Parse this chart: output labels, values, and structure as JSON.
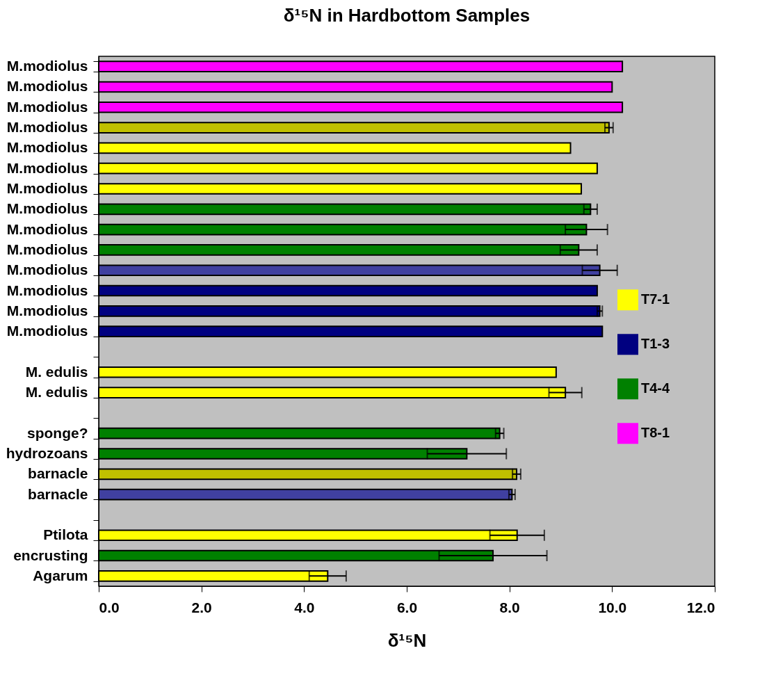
{
  "chart_data": {
    "type": "bar",
    "orientation": "horizontal",
    "title": "δ¹⁵N in Hardbottom Samples",
    "xlabel": "δ¹⁵N",
    "categories": [
      "M.modiolus",
      "M.modiolus",
      "M.modiolus",
      "M.modiolus",
      "M.modiolus",
      "M.modiolus",
      "M.modiolus",
      "M.modiolus",
      "M.modiolus",
      "M.modiolus",
      "M.modiolus",
      "M.modiolus",
      "M.modiolus",
      "M.modiolus",
      null,
      "M. edulis",
      "M. edulis",
      null,
      "sponge?",
      "hydrozoans",
      "barnacle",
      "barnacle",
      null,
      "Ptilota",
      "encrusting",
      "Agarum"
    ],
    "series": [
      {
        "name": "T7-1",
        "color": "#ffff00",
        "values": [
          null,
          null,
          null,
          null,
          9.19,
          9.71,
          9.4,
          null,
          null,
          null,
          null,
          null,
          null,
          null,
          null,
          8.91,
          9.09,
          null,
          null,
          null,
          null,
          null,
          null,
          8.15,
          null,
          4.46
        ],
        "errors": [
          null,
          null,
          null,
          null,
          null,
          null,
          null,
          null,
          null,
          null,
          null,
          null,
          null,
          null,
          null,
          null,
          0.32,
          null,
          null,
          null,
          null,
          null,
          null,
          0.53,
          null,
          0.36
        ]
      },
      {
        "name": "T1-3",
        "color": "#000080",
        "values": [
          null,
          null,
          null,
          null,
          null,
          null,
          null,
          null,
          null,
          null,
          null,
          9.71,
          9.76,
          9.81,
          null,
          null,
          null,
          null,
          null,
          null,
          null,
          null,
          null,
          null,
          null,
          null
        ],
        "errors": [
          null,
          null,
          null,
          null,
          null,
          null,
          null,
          null,
          null,
          null,
          null,
          null,
          0.05,
          null,
          null,
          null,
          null,
          null,
          null,
          null,
          null,
          null,
          null,
          null,
          null,
          null
        ]
      },
      {
        "name": "T4-4",
        "color": "#008000",
        "values": [
          null,
          null,
          null,
          null,
          null,
          null,
          null,
          9.58,
          9.5,
          9.35,
          null,
          null,
          null,
          null,
          null,
          null,
          null,
          null,
          7.81,
          7.17,
          null,
          null,
          null,
          null,
          7.68,
          null
        ],
        "errors": [
          null,
          null,
          null,
          null,
          null,
          null,
          null,
          0.13,
          0.41,
          0.36,
          null,
          null,
          null,
          null,
          null,
          null,
          null,
          null,
          0.08,
          0.77,
          null,
          null,
          null,
          null,
          1.05,
          null
        ]
      },
      {
        "name": "T8-1",
        "color": "#ff00ff",
        "values": [
          10.2,
          10.0,
          10.2,
          null,
          null,
          null,
          null,
          null,
          null,
          null,
          null,
          null,
          null,
          null,
          null,
          null,
          null,
          null,
          null,
          null,
          null,
          null,
          null,
          null,
          null,
          null
        ]
      },
      {
        "color": "#c0c000",
        "values": [
          null,
          null,
          null,
          9.94,
          null,
          null,
          null,
          null,
          null,
          null,
          null,
          null,
          null,
          null,
          null,
          null,
          null,
          null,
          null,
          null,
          8.14,
          null,
          null,
          null,
          null,
          null
        ],
        "errors": [
          null,
          null,
          null,
          0.08,
          null,
          null,
          null,
          null,
          null,
          null,
          null,
          null,
          null,
          null,
          null,
          null,
          null,
          null,
          null,
          null,
          0.08,
          null,
          null,
          null,
          null,
          null
        ]
      },
      {
        "color": "#4040a0",
        "values": [
          null,
          null,
          null,
          null,
          null,
          null,
          null,
          null,
          null,
          null,
          9.76,
          null,
          null,
          null,
          null,
          null,
          null,
          null,
          null,
          null,
          null,
          8.05,
          null,
          null,
          null,
          null
        ],
        "errors": [
          null,
          null,
          null,
          null,
          null,
          null,
          null,
          null,
          null,
          null,
          0.34,
          null,
          null,
          null,
          null,
          null,
          null,
          null,
          null,
          null,
          null,
          0.06,
          null,
          null,
          null,
          null
        ]
      }
    ],
    "xlim": [
      0,
      12
    ],
    "xticks": [
      {
        "value": 0,
        "label": "0.0"
      },
      {
        "value": 2,
        "label": "2.0"
      },
      {
        "value": 4,
        "label": "4.0"
      },
      {
        "value": 6,
        "label": "6.0"
      },
      {
        "value": 8,
        "label": "8.0"
      },
      {
        "value": 10,
        "label": "10.0"
      },
      {
        "value": 12,
        "label": "12.0"
      }
    ],
    "legend": "right"
  }
}
